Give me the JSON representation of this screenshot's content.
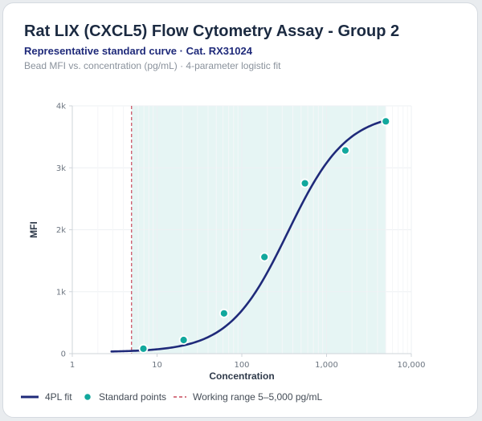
{
  "header": {
    "title": "Rat LIX (CXCL5) Flow Cytometry Assay - Group 2",
    "subtitle": "Representative standard curve · Cat. RX31024",
    "description": "Bead MFI vs. concentration (pg/mL) · 4-parameter logistic fit"
  },
  "colors": {
    "curve": "#1f2a7a",
    "points": "#12a89d",
    "working_range_band": "#e6f5f4",
    "working_range_line": "#c94a5b"
  },
  "chart_data": {
    "type": "scatter",
    "xlabel": "Concentration",
    "ylabel": "MFI",
    "xscale": "log",
    "xlim": [
      1,
      10000
    ],
    "ylim": [
      0,
      4000
    ],
    "x_ticks": [
      1,
      10,
      100,
      1000,
      10000
    ],
    "x_tick_labels": [
      "1",
      "10",
      "100",
      "1,000",
      "10,000"
    ],
    "y_ticks": [
      0,
      1000,
      2000,
      3000,
      4000
    ],
    "y_tick_labels": [
      "0",
      "1k",
      "2k",
      "3k",
      "4k"
    ],
    "grid": true,
    "legend_position": "bottom",
    "series": [
      {
        "name": "Standard points",
        "kind": "scatter",
        "x": [
          6.9,
          20.6,
          61.7,
          185,
          556,
          1667,
          5000
        ],
        "y": [
          80,
          220,
          650,
          1560,
          2750,
          3280,
          3750
        ]
      },
      {
        "name": "4PL fit",
        "kind": "line",
        "model": "4pl",
        "params": {
          "bottom": 25,
          "top": 3900,
          "ec50": 350,
          "hill": 1.25
        },
        "x_range": [
          2.9,
          5000
        ]
      }
    ],
    "working_range": {
      "name": "Working range 5–5,000 pg/mL",
      "x": [
        5,
        5000
      ]
    },
    "legend": [
      {
        "label": "4PL fit",
        "kind": "line"
      },
      {
        "label": "Standard points",
        "kind": "marker"
      },
      {
        "label": "Working range 5–5,000 pg/mL",
        "kind": "dashed"
      }
    ]
  }
}
